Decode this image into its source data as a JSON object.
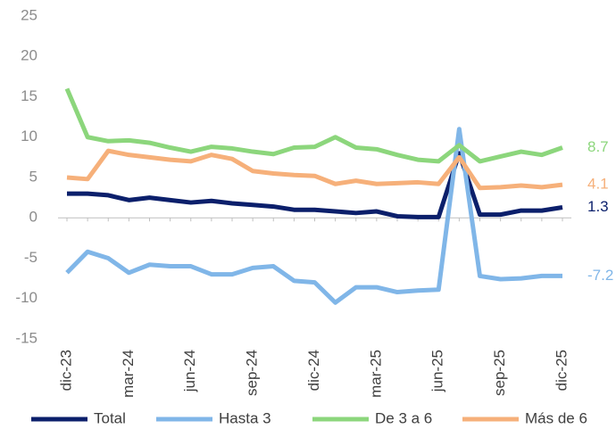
{
  "chart_data": {
    "type": "line",
    "categories": [
      "dic-23",
      null,
      null,
      "mar-24",
      null,
      null,
      "jun-24",
      null,
      null,
      "sep-24",
      null,
      null,
      "dic-24",
      null,
      null,
      "mar-25",
      null,
      null,
      "jun-25",
      null,
      null,
      "sep-25",
      null,
      null,
      "dic-25"
    ],
    "series": [
      {
        "name": "Total",
        "color": "#0b1f6b",
        "values": [
          3.0,
          3.0,
          2.8,
          2.2,
          2.5,
          2.2,
          1.9,
          2.1,
          1.8,
          1.6,
          1.4,
          1.0,
          1.0,
          0.8,
          0.6,
          0.8,
          0.2,
          0.1,
          0.1,
          8.0,
          0.4,
          0.4,
          0.9,
          0.9,
          1.3
        ]
      },
      {
        "name": "Hasta 3",
        "color": "#80b6e8",
        "values": [
          -6.8,
          -4.2,
          -5.0,
          -6.8,
          -5.8,
          -6.0,
          -6.0,
          -7.0,
          -7.0,
          -6.2,
          -6.0,
          -7.8,
          -8.0,
          -10.5,
          -8.6,
          -8.6,
          -9.2,
          -9.0,
          -8.9,
          11.0,
          -7.2,
          -7.6,
          -7.5,
          -7.2,
          -7.2
        ]
      },
      {
        "name": "De 3 a 6",
        "color": "#8cd67c",
        "values": [
          16.0,
          10.0,
          9.5,
          9.6,
          9.3,
          8.7,
          8.2,
          8.8,
          8.6,
          8.2,
          7.9,
          8.7,
          8.8,
          10.0,
          8.7,
          8.5,
          7.8,
          7.2,
          7.0,
          9.0,
          7.0,
          7.6,
          8.2,
          7.8,
          8.7
        ]
      },
      {
        "name": "Más de 6",
        "color": "#f6b07a",
        "values": [
          5.0,
          4.8,
          8.3,
          7.8,
          7.5,
          7.2,
          7.0,
          7.8,
          7.3,
          5.8,
          5.5,
          5.3,
          5.2,
          4.2,
          4.6,
          4.2,
          4.3,
          4.4,
          4.2,
          7.5,
          3.7,
          3.8,
          4.0,
          3.8,
          4.1
        ]
      }
    ],
    "ylim": [
      -15,
      25
    ],
    "yticks": [
      -15,
      -10,
      -5,
      0,
      5,
      10,
      15,
      20,
      25
    ]
  }
}
